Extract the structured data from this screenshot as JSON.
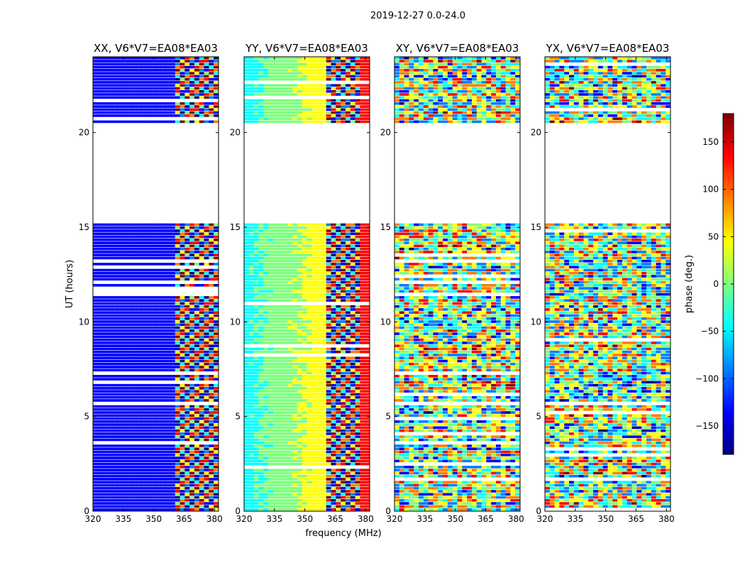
{
  "figure_title": "2019-12-27 0.0-24.0",
  "colors": {
    "colormap": [
      "#00007f",
      "#0000ff",
      "#007fff",
      "#00ffff",
      "#7fff7f",
      "#ffff00",
      "#ff7f00",
      "#ff0000",
      "#7f0000"
    ],
    "background": "#ffffff"
  },
  "chart_data": {
    "type": "heatmap",
    "xlabel": "frequency (MHz)",
    "ylabel": "UT (hours)",
    "xlim": [
      320,
      382
    ],
    "ylim": [
      0,
      24
    ],
    "xticks": [
      320,
      335,
      350,
      365,
      380
    ],
    "yticks": [
      0,
      5,
      10,
      15,
      20
    ],
    "colorbar": {
      "label": "phase (deg.)",
      "range": [
        -180,
        180
      ],
      "ticks": [
        -150,
        -100,
        -50,
        0,
        50,
        100,
        150
      ]
    },
    "data_gaps_ut_hours": [
      [
        15.3,
        20.5
      ]
    ],
    "panels": [
      {
        "title": "XX, V6*V7=EA08*EA03",
        "pol": "XX"
      },
      {
        "title": "YY, V6*V7=EA08*EA03",
        "pol": "YY"
      },
      {
        "title": "XY, V6*V7=EA08*EA03",
        "pol": "XY"
      },
      {
        "title": "YX, V6*V7=EA08*EA03",
        "pol": "YX"
      }
    ]
  }
}
